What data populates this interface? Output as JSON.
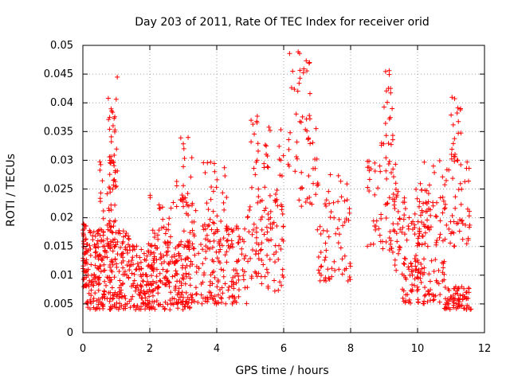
{
  "chart_data": {
    "type": "scatter",
    "title": "Day 203 of 2011, Rate Of TEC Index for receiver orid",
    "xlabel": "GPS time / hours",
    "ylabel": "ROTI / TECUs",
    "xlim": [
      0,
      12
    ],
    "ylim": [
      0,
      0.05
    ],
    "xticks": [
      "0",
      "2",
      "4",
      "6",
      "8",
      "10",
      "12"
    ],
    "yticks": [
      "0",
      "0.005",
      "0.01",
      "0.015",
      "0.02",
      "0.025",
      "0.03",
      "0.035",
      "0.04",
      "0.045",
      "0.05"
    ],
    "grid": true,
    "marker": "+",
    "series": [
      {
        "name": "ROTI",
        "color": "#ff0000",
        "clusters": [
          {
            "x": [
              0.0,
              0.1
            ],
            "y": [
              0.008,
              0.019
            ],
            "n": 40
          },
          {
            "x": [
              0.1,
              1.5
            ],
            "y": [
              0.004,
              0.018
            ],
            "n": 260
          },
          {
            "x": [
              0.5,
              1.0
            ],
            "y": [
              0.015,
              0.03
            ],
            "n": 50
          },
          {
            "x": [
              0.75,
              1.05
            ],
            "y": [
              0.025,
              0.045
            ],
            "n": 30
          },
          {
            "x": [
              1.5,
              3.2
            ],
            "y": [
              0.004,
              0.016
            ],
            "n": 260
          },
          {
            "x": [
              2.0,
              3.4
            ],
            "y": [
              0.012,
              0.024
            ],
            "n": 60
          },
          {
            "x": [
              2.8,
              3.3
            ],
            "y": [
              0.022,
              0.034
            ],
            "n": 20
          },
          {
            "x": [
              3.2,
              4.9
            ],
            "y": [
              0.005,
              0.02
            ],
            "n": 180
          },
          {
            "x": [
              3.6,
              4.3
            ],
            "y": [
              0.018,
              0.03
            ],
            "n": 25
          },
          {
            "x": [
              4.9,
              6.0
            ],
            "y": [
              0.007,
              0.025
            ],
            "n": 90
          },
          {
            "x": [
              5.0,
              5.3
            ],
            "y": [
              0.025,
              0.038
            ],
            "n": 15
          },
          {
            "x": [
              5.4,
              6.0
            ],
            "y": [
              0.02,
              0.036
            ],
            "n": 25
          },
          {
            "x": [
              6.1,
              6.8
            ],
            "y": [
              0.028,
              0.049
            ],
            "n": 35
          },
          {
            "x": [
              6.4,
              7.0
            ],
            "y": [
              0.022,
              0.04
            ],
            "n": 25
          },
          {
            "x": [
              7.0,
              8.0
            ],
            "y": [
              0.009,
              0.028
            ],
            "n": 70
          },
          {
            "x": [
              8.5,
              9.5
            ],
            "y": [
              0.014,
              0.03
            ],
            "n": 60
          },
          {
            "x": [
              8.9,
              9.3
            ],
            "y": [
              0.028,
              0.047
            ],
            "n": 25
          },
          {
            "x": [
              9.3,
              10.2
            ],
            "y": [
              0.01,
              0.025
            ],
            "n": 70
          },
          {
            "x": [
              9.5,
              10.8
            ],
            "y": [
              0.005,
              0.013
            ],
            "n": 80
          },
          {
            "x": [
              10.0,
              11.6
            ],
            "y": [
              0.015,
              0.03
            ],
            "n": 110
          },
          {
            "x": [
              10.8,
              11.6
            ],
            "y": [
              0.004,
              0.008
            ],
            "n": 70
          },
          {
            "x": [
              11.0,
              11.3
            ],
            "y": [
              0.03,
              0.042
            ],
            "n": 20
          }
        ]
      }
    ]
  }
}
